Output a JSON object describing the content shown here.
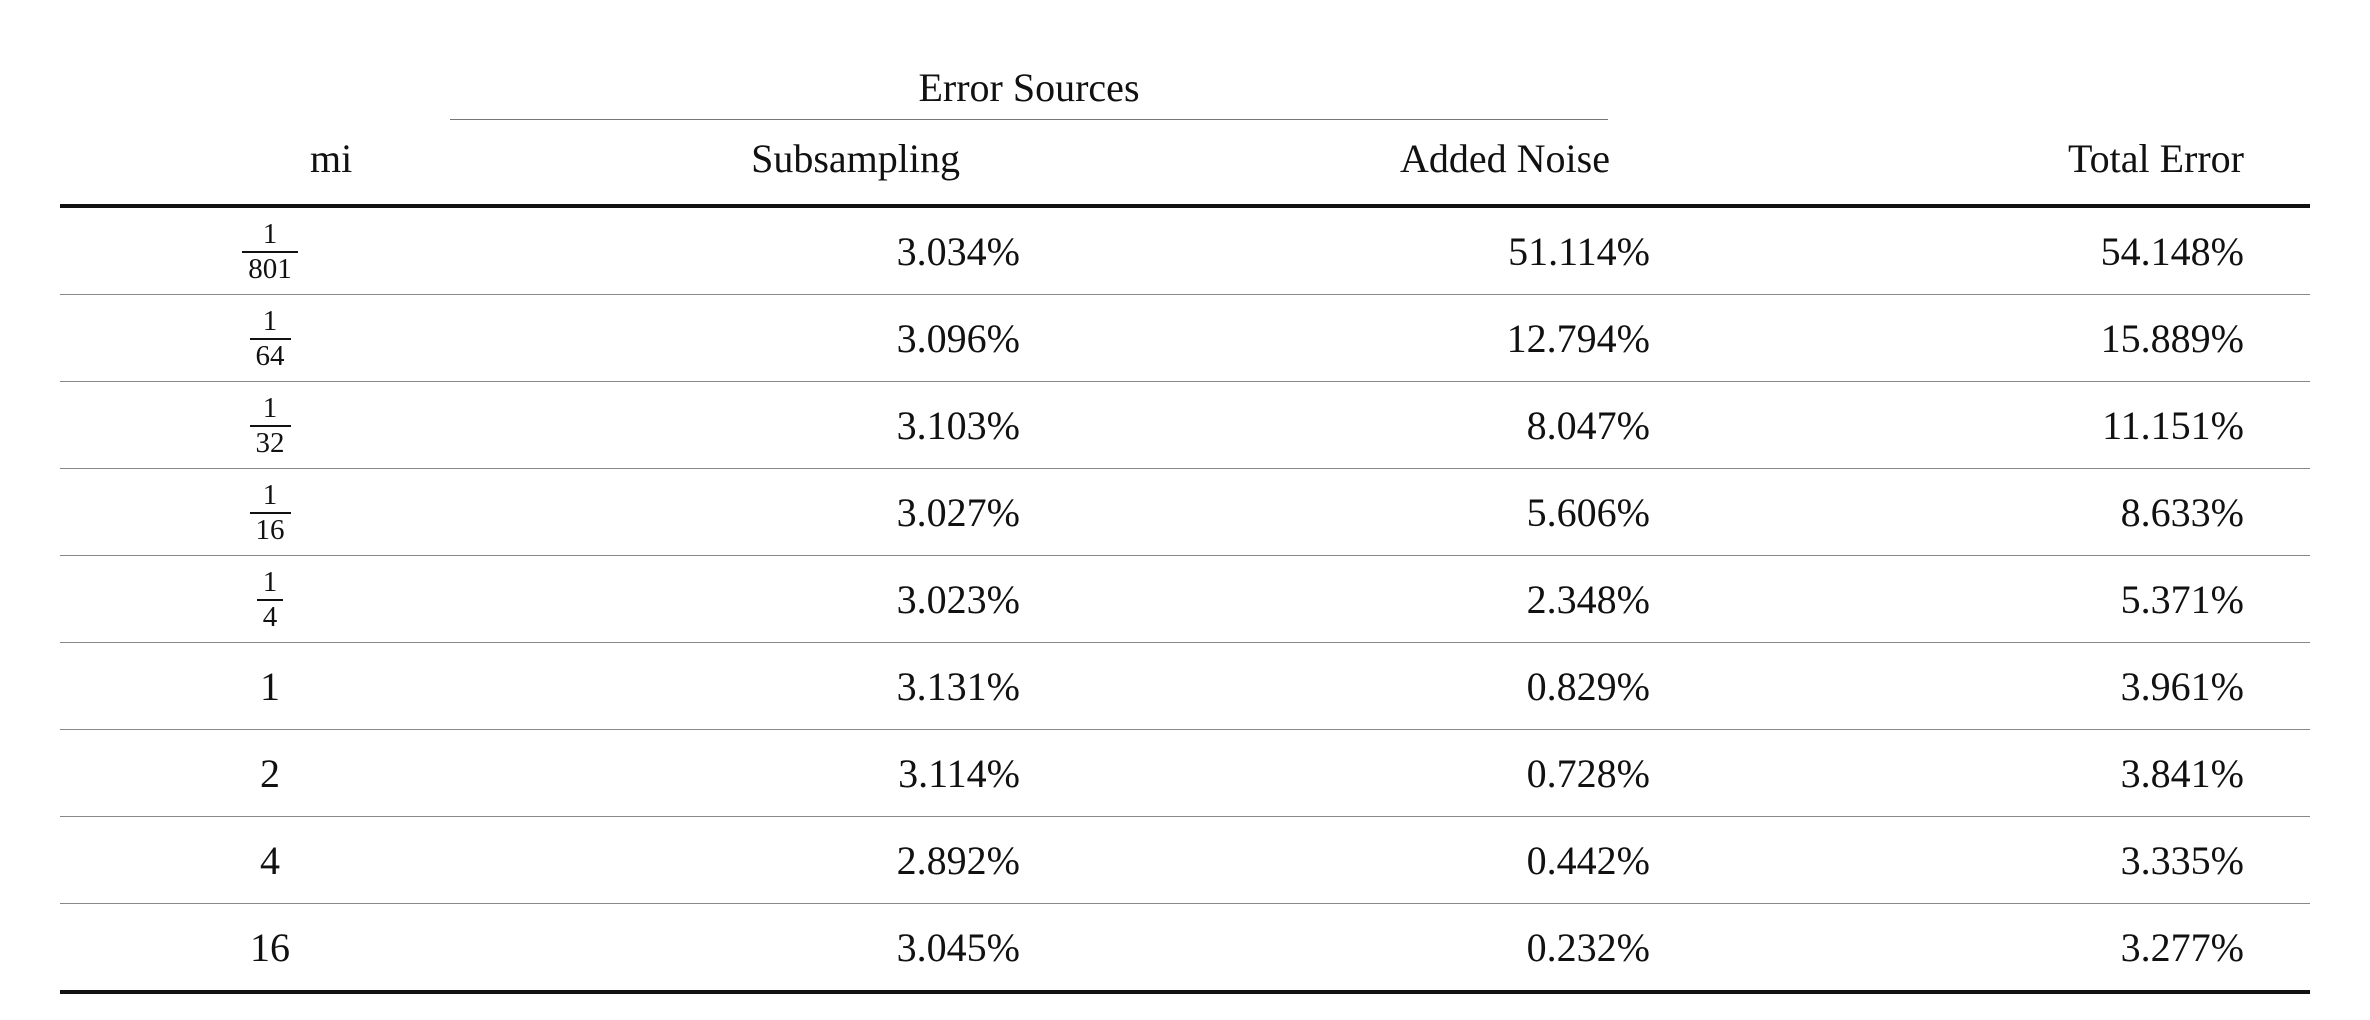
{
  "table": {
    "group_header": "Error Sources",
    "headers": {
      "mi": "mi",
      "subsampling": "Subsampling",
      "added_noise": "Added Noise",
      "total_error": "Total Error"
    },
    "rows": [
      {
        "mi": {
          "num": "1",
          "den": "801"
        },
        "subsampling": "3.034%",
        "added_noise": "51.114%",
        "total_error": "54.148%"
      },
      {
        "mi": {
          "num": "1",
          "den": "64"
        },
        "subsampling": "3.096%",
        "added_noise": "12.794%",
        "total_error": "15.889%"
      },
      {
        "mi": {
          "num": "1",
          "den": "32"
        },
        "subsampling": "3.103%",
        "added_noise": "8.047%",
        "total_error": "11.151%"
      },
      {
        "mi": {
          "num": "1",
          "den": "16"
        },
        "subsampling": "3.027%",
        "added_noise": "5.606%",
        "total_error": "8.633%"
      },
      {
        "mi": {
          "num": "1",
          "den": "4"
        },
        "subsampling": "3.023%",
        "added_noise": "2.348%",
        "total_error": "5.371%"
      },
      {
        "mi": "1",
        "subsampling": "3.131%",
        "added_noise": "0.829%",
        "total_error": "3.961%"
      },
      {
        "mi": "2",
        "subsampling": "3.114%",
        "added_noise": "0.728%",
        "total_error": "3.841%"
      },
      {
        "mi": "4",
        "subsampling": "2.892%",
        "added_noise": "0.442%",
        "total_error": "3.335%"
      },
      {
        "mi": "16",
        "subsampling": "3.045%",
        "added_noise": "0.232%",
        "total_error": "3.277%"
      }
    ]
  }
}
